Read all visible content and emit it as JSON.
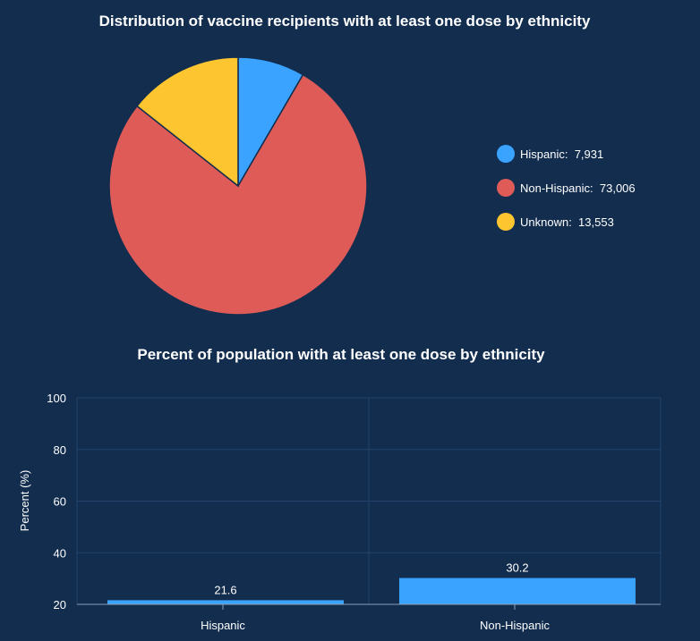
{
  "chart_data": [
    {
      "type": "pie",
      "title": "Distribution of vaccine recipients with at least one dose by ethnicity",
      "slices": [
        {
          "label": "Hispanic",
          "value": 7931,
          "display": "7,931",
          "color": "#3aa3ff"
        },
        {
          "label": "Non-Hispanic",
          "value": 73006,
          "display": "73,006",
          "color": "#de5b58"
        },
        {
          "label": "Unknown",
          "value": 13553,
          "display": "13,553",
          "color": "#fdc52f"
        }
      ],
      "legend_position": "right"
    },
    {
      "type": "bar",
      "title": "Percent of population with at least one dose by ethnicity",
      "categories": [
        "Hispanic",
        "Non-Hispanic"
      ],
      "values": [
        21.6,
        30.2
      ],
      "value_labels": [
        "21.6",
        "30.2"
      ],
      "ylabel": "Percent (%)",
      "ylim": [
        20,
        100
      ],
      "yticks": [
        20,
        40,
        60,
        80,
        100
      ],
      "bar_color": "#3aa3ff",
      "grid": true
    }
  ]
}
